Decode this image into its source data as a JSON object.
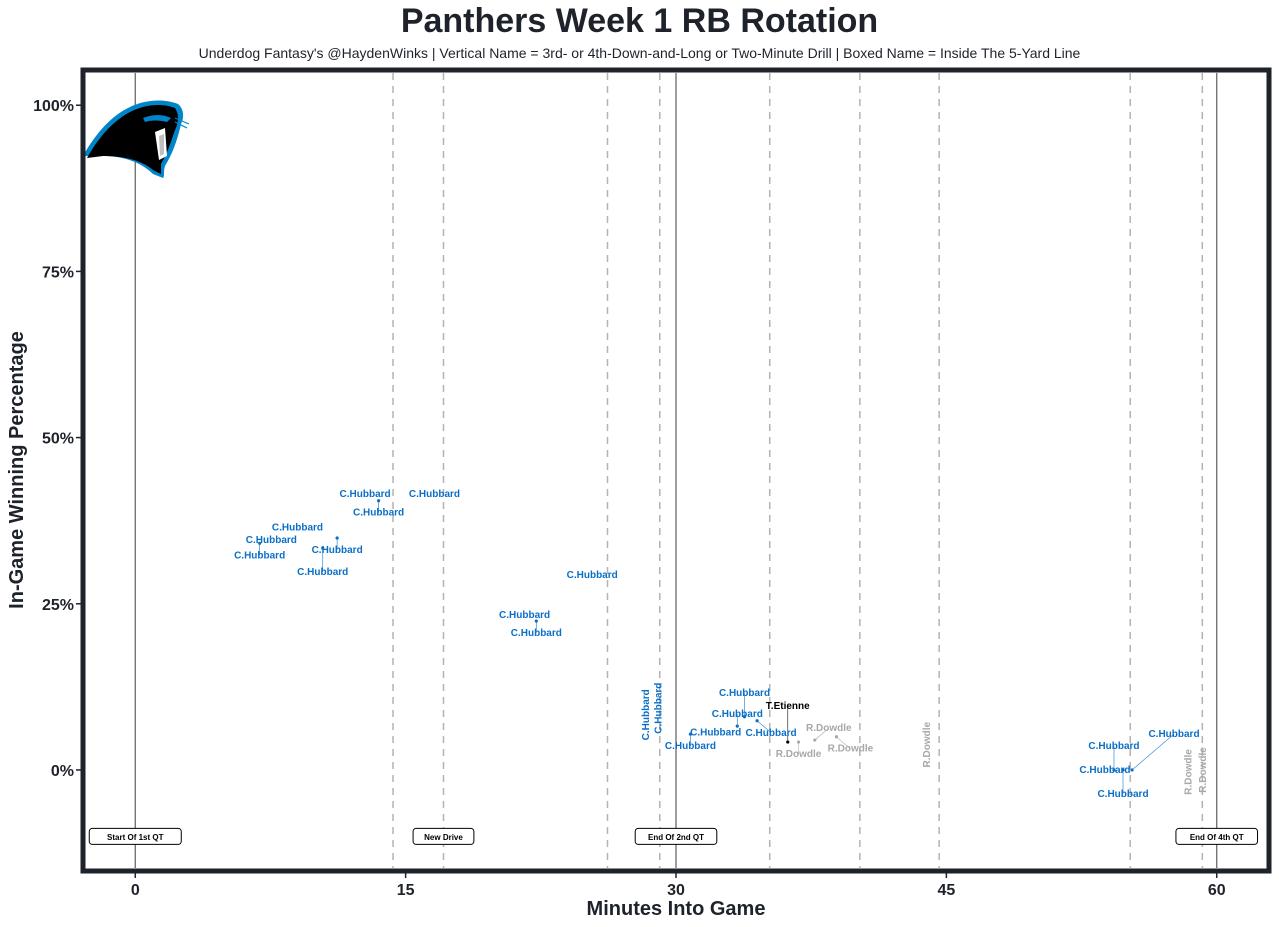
{
  "chart_data": {
    "type": "scatter",
    "title": "Panthers Week 1 RB Rotation",
    "subtitle": "Underdog Fantasy's @HaydenWinks | Vertical Name = 3rd- or 4th-Down-and-Long or Two-Minute Drill | Boxed Name = Inside The 5-Yard Line",
    "xlabel": "Minutes Into Game",
    "ylabel": "In-Game Winning Percentage",
    "xlim": [
      -2.9,
      62.9
    ],
    "ylim": [
      -15.2,
      105.3
    ],
    "xticks": [
      {
        "v": 0,
        "label": "0"
      },
      {
        "v": 15,
        "label": "15"
      },
      {
        "v": 30,
        "label": "30"
      },
      {
        "v": 45,
        "label": "45"
      },
      {
        "v": 60,
        "label": "60"
      }
    ],
    "yticks": [
      {
        "v": 0,
        "label": "0%"
      },
      {
        "v": 25,
        "label": "25%"
      },
      {
        "v": 50,
        "label": "50%"
      },
      {
        "v": 75,
        "label": "75%"
      },
      {
        "v": 100,
        "label": "100%"
      }
    ],
    "grid": false,
    "colors": {
      "C.Hubbard": "#0b6fc7",
      "T.Etienne": "#000000",
      "R.Dowdle": "#a8a8a8",
      "frame": "#1e222b"
    },
    "quarter_lines": [
      0,
      30,
      60
    ],
    "drive_lines": [
      14.3,
      17.1,
      26.2,
      29.1,
      35.2,
      40.2,
      44.6,
      55.2,
      59.2
    ],
    "event_labels": [
      {
        "x": 0,
        "y": -10,
        "label": "Start Of 1st QT"
      },
      {
        "x": 17.1,
        "y": -10,
        "label": "New Drive"
      },
      {
        "x": 30,
        "y": -10,
        "label": "End Of 2nd QT"
      },
      {
        "x": 60,
        "y": -10,
        "label": "End Of 4th QT"
      }
    ],
    "points": [
      {
        "x": 12.75,
        "y": 41.5,
        "player": "C.Hubbard",
        "vertical": false
      },
      {
        "x": 13.5,
        "y": 40.5,
        "player": "C.Hubbard",
        "vertical": false
      },
      {
        "x": 16.6,
        "y": 41.5,
        "player": "C.Hubbard",
        "vertical": false
      },
      {
        "x": 9.0,
        "y": 36.5,
        "player": "C.Hubbard",
        "vertical": false
      },
      {
        "x": 7.55,
        "y": 34.6,
        "player": "C.Hubbard",
        "vertical": false
      },
      {
        "x": 6.9,
        "y": 34.1,
        "player": "C.Hubbard",
        "vertical": false
      },
      {
        "x": 11.2,
        "y": 34.9,
        "player": "C.Hubbard",
        "vertical": false
      },
      {
        "x": 10.4,
        "y": 33.4,
        "player": "C.Hubbard",
        "vertical": false
      },
      {
        "x": 25.35,
        "y": 29.3,
        "player": "C.Hubbard",
        "vertical": false
      },
      {
        "x": 21.6,
        "y": 23.3,
        "player": "C.Hubbard",
        "vertical": false
      },
      {
        "x": 22.25,
        "y": 22.4,
        "player": "C.Hubbard",
        "vertical": false
      },
      {
        "x": 28.3,
        "y": 8.3,
        "player": "C.Hubbard",
        "vertical": true
      },
      {
        "x": 29.0,
        "y": 9.3,
        "player": "C.Hubbard",
        "vertical": true
      },
      {
        "x": 30.8,
        "y": 5.4,
        "player": "C.Hubbard",
        "vertical": false
      },
      {
        "x": 32.2,
        "y": 5.6,
        "player": "C.Hubbard",
        "vertical": false
      },
      {
        "x": 33.4,
        "y": 6.6,
        "player": "C.Hubbard",
        "vertical": false
      },
      {
        "x": 33.8,
        "y": 8.0,
        "player": "C.Hubbard",
        "vertical": false
      },
      {
        "x": 34.5,
        "y": 7.4,
        "player": "C.Hubbard",
        "vertical": false
      },
      {
        "x": 36.8,
        "y": 4.2,
        "player": "R.Dowdle",
        "vertical": false
      },
      {
        "x": 37.7,
        "y": 4.5,
        "player": "R.Dowdle",
        "vertical": false
      },
      {
        "x": 38.9,
        "y": 5.0,
        "player": "R.Dowdle",
        "vertical": false
      },
      {
        "x": 36.2,
        "y": 4.2,
        "player": "T.Etienne",
        "vertical": false
      },
      {
        "x": 43.9,
        "y": 3.8,
        "player": "R.Dowdle",
        "vertical": true
      },
      {
        "x": 53.8,
        "y": 0,
        "player": "C.Hubbard",
        "vertical": false
      },
      {
        "x": 54.3,
        "y": 0,
        "player": "C.Hubbard",
        "vertical": false
      },
      {
        "x": 54.8,
        "y": 0,
        "player": "C.Hubbard",
        "vertical": false
      },
      {
        "x": 55.3,
        "y": 0,
        "player": "C.Hubbard",
        "vertical": false
      },
      {
        "x": 58.4,
        "y": -0.3,
        "player": "R.Dowdle",
        "vertical": true
      },
      {
        "x": 59.2,
        "y": 0,
        "player": "R.Dowdle",
        "vertical": true
      }
    ],
    "logo": "carolina-panthers-logo"
  }
}
